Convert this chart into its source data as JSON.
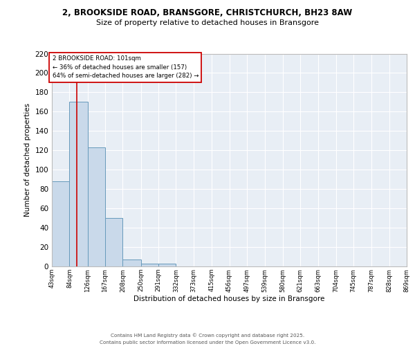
{
  "title_line1": "2, BROOKSIDE ROAD, BRANSGORE, CHRISTCHURCH, BH23 8AW",
  "title_line2": "Size of property relative to detached houses in Bransgore",
  "xlabel": "Distribution of detached houses by size in Bransgore",
  "ylabel": "Number of detached properties",
  "bar_edges": [
    43,
    84,
    126,
    167,
    208,
    250,
    291,
    332,
    373,
    415,
    456,
    497,
    539,
    580,
    621,
    663,
    704,
    745,
    787,
    828,
    869
  ],
  "bar_values": [
    88,
    170,
    123,
    50,
    7,
    3,
    3,
    0,
    0,
    0,
    0,
    0,
    0,
    0,
    0,
    0,
    0,
    0,
    0,
    0
  ],
  "bar_color": "#c9d9ea",
  "bar_edge_color": "#6699bb",
  "vline_x": 101,
  "vline_color": "#cc0000",
  "annotation_text": "2 BROOKSIDE ROAD: 101sqm\n← 36% of detached houses are smaller (157)\n64% of semi-detached houses are larger (282) →",
  "annotation_box_color": "#cc0000",
  "ylim": [
    0,
    220
  ],
  "yticks": [
    0,
    20,
    40,
    60,
    80,
    100,
    120,
    140,
    160,
    180,
    200,
    220
  ],
  "background_color": "#e8eef5",
  "grid_color": "#ffffff",
  "footer_text": "Contains HM Land Registry data © Crown copyright and database right 2025.\nContains public sector information licensed under the Open Government Licence v3.0.",
  "tick_labels": [
    "43sqm",
    "84sqm",
    "126sqm",
    "167sqm",
    "208sqm",
    "250sqm",
    "291sqm",
    "332sqm",
    "373sqm",
    "415sqm",
    "456sqm",
    "497sqm",
    "539sqm",
    "580sqm",
    "621sqm",
    "663sqm",
    "704sqm",
    "745sqm",
    "787sqm",
    "828sqm",
    "869sqm"
  ],
  "title_fontsize": 8.5,
  "subtitle_fontsize": 8,
  "ylabel_fontsize": 7.5,
  "xlabel_fontsize": 7.5,
  "ytick_fontsize": 7.5,
  "xtick_fontsize": 6
}
